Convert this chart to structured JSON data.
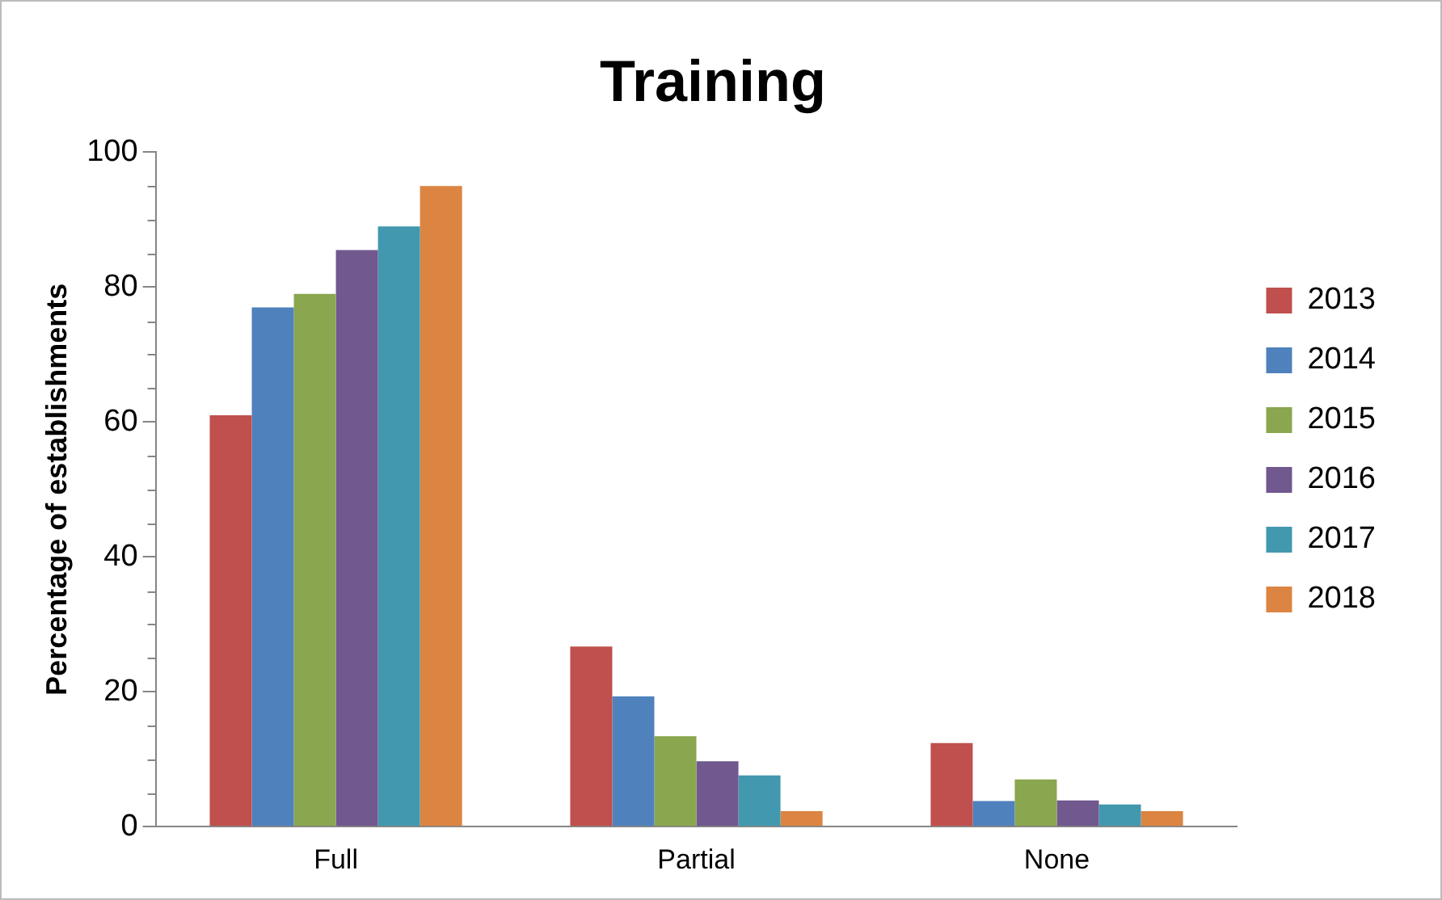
{
  "chart_data": {
    "type": "bar",
    "title": "Training",
    "ylabel": "Percentage of establishments",
    "categories": [
      "Full",
      "Partial",
      "None"
    ],
    "series": [
      {
        "name": "2013",
        "color": "#c0504d",
        "values": [
          61,
          26.7,
          12.4
        ]
      },
      {
        "name": "2014",
        "color": "#4f81bd",
        "values": [
          77,
          19.3,
          3.8
        ]
      },
      {
        "name": "2015",
        "color": "#8aa64e",
        "values": [
          79,
          13.4,
          7
        ]
      },
      {
        "name": "2016",
        "color": "#71588f",
        "values": [
          85.5,
          9.7,
          3.9
        ]
      },
      {
        "name": "2017",
        "color": "#4298af",
        "values": [
          89,
          7.6,
          3.3
        ]
      },
      {
        "name": "2018",
        "color": "#dc8441",
        "values": [
          95,
          2.3,
          2.3
        ]
      }
    ],
    "ylim": [
      0,
      100
    ],
    "yticks": [
      0,
      20,
      40,
      60,
      80,
      100
    ],
    "grid": false,
    "legend": "right"
  }
}
